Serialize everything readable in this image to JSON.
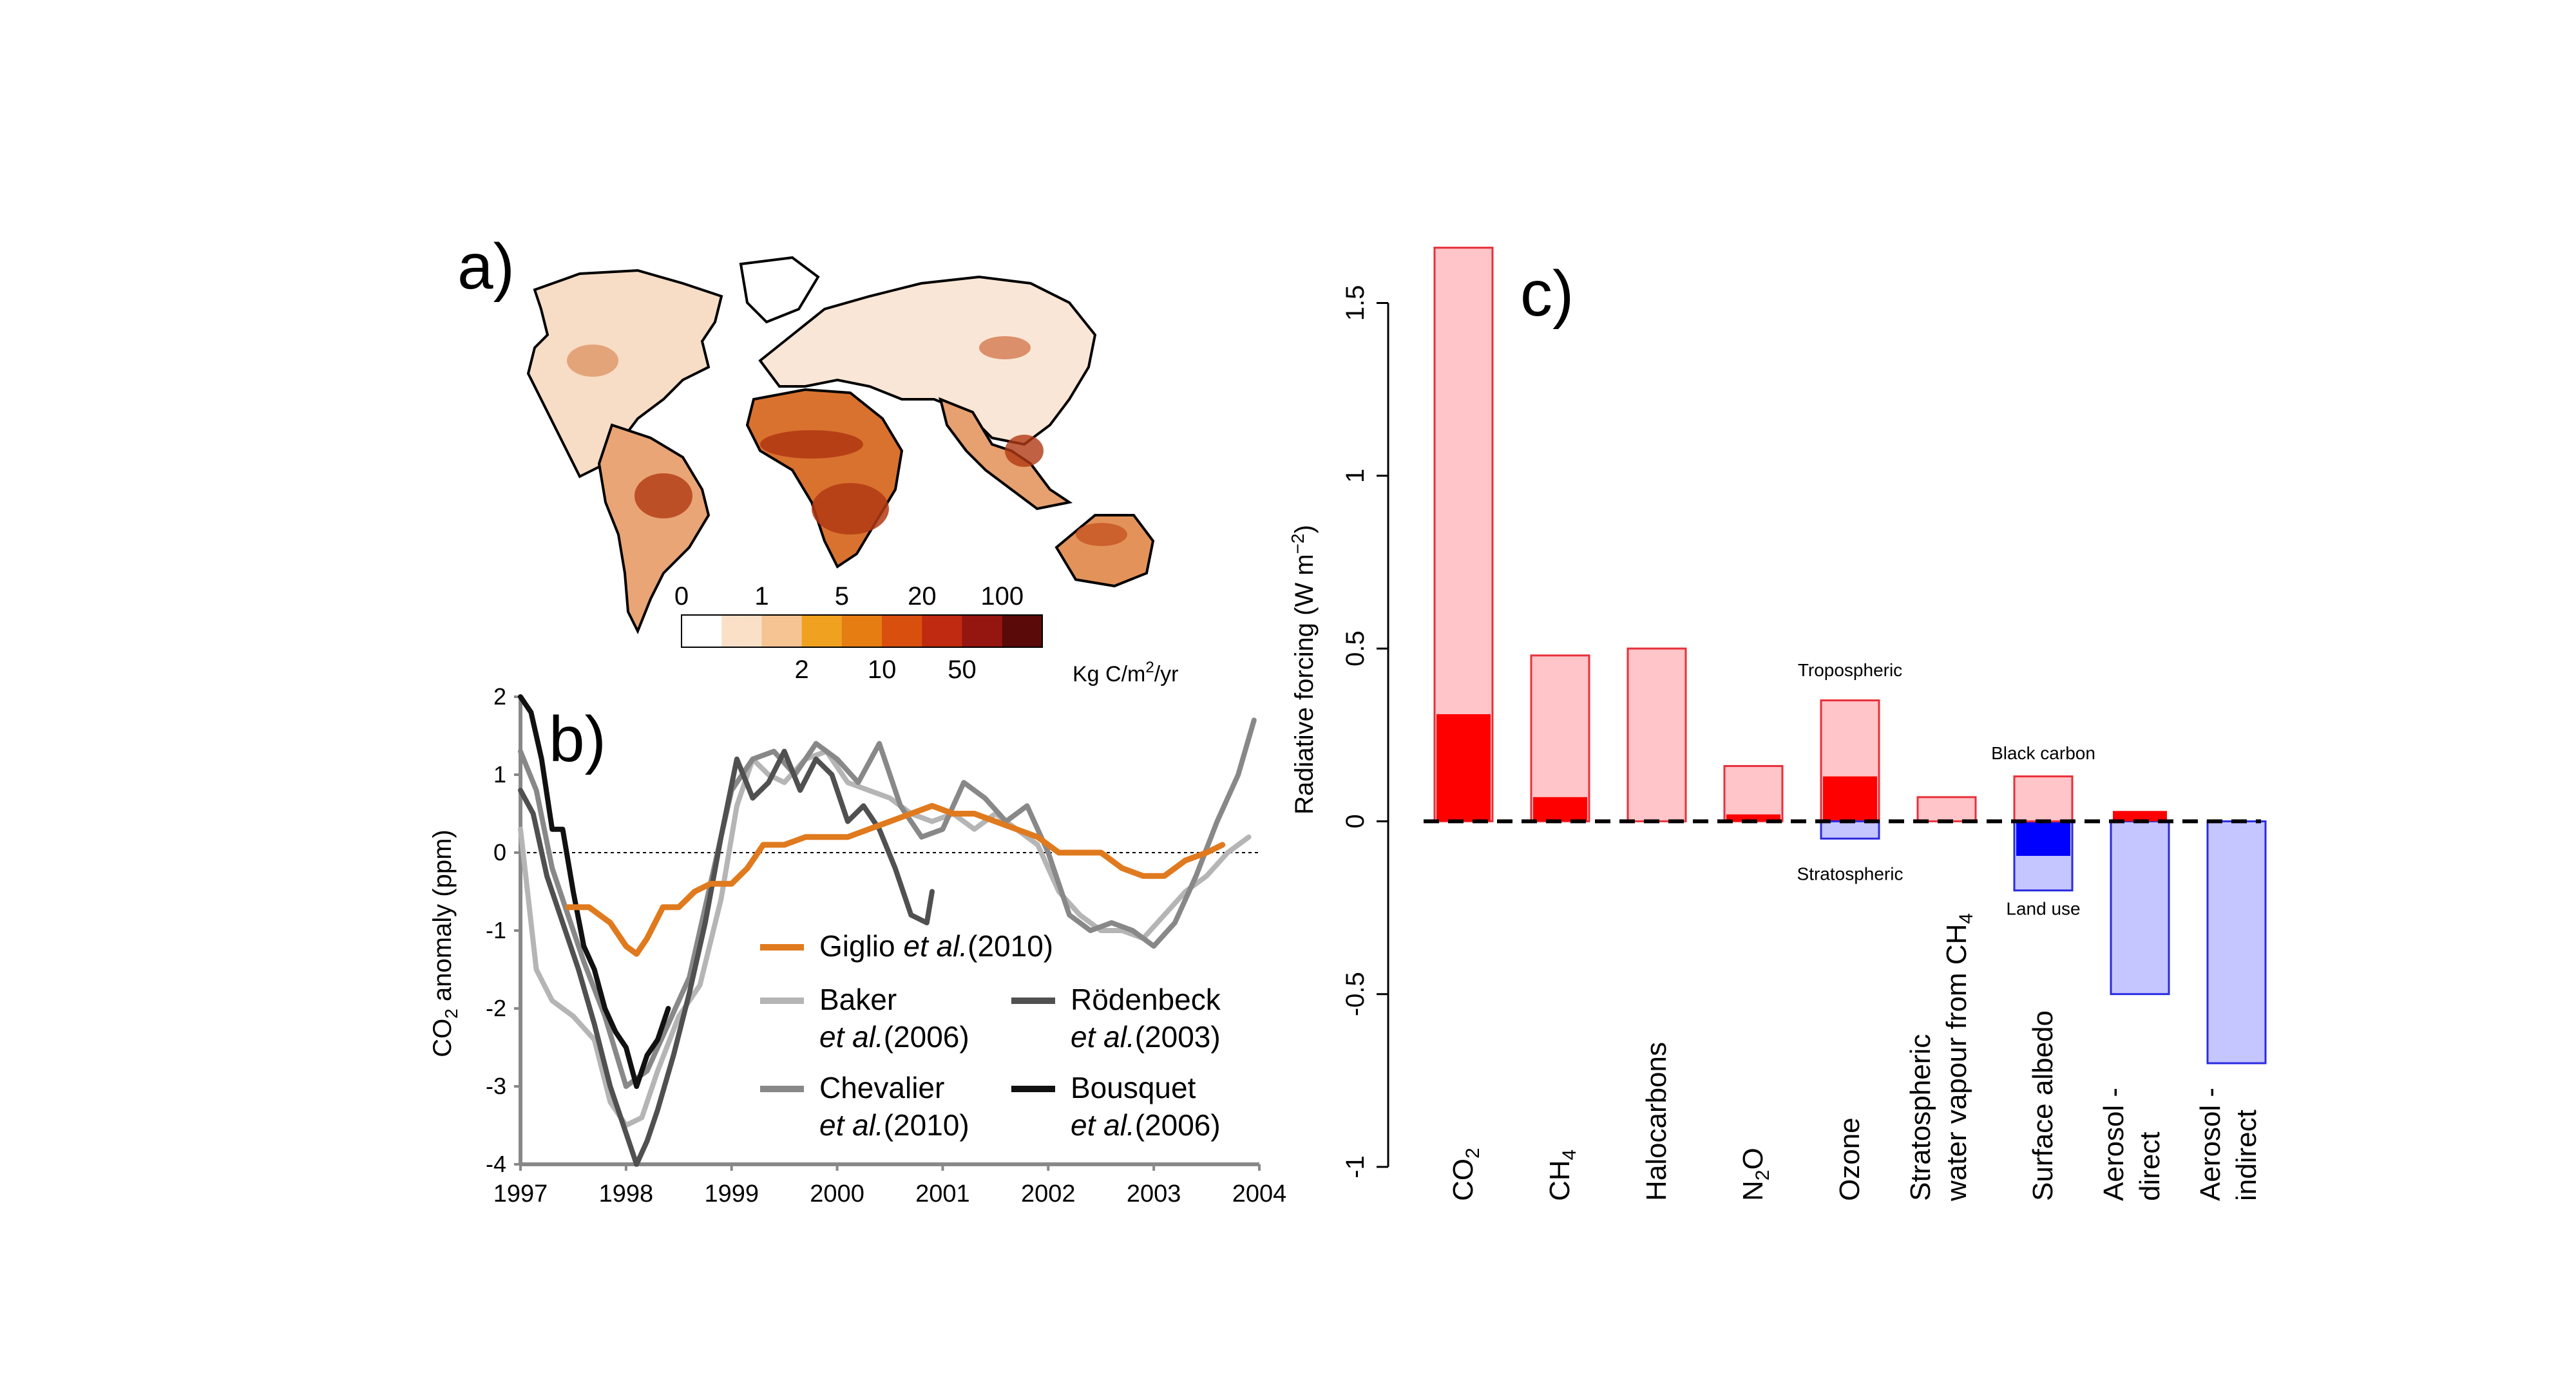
{
  "panels": {
    "a": {
      "label": "a)"
    },
    "b": {
      "label": "b)"
    },
    "c": {
      "label": "c)"
    }
  },
  "colorbar": {
    "top_ticks": [
      "0",
      "1",
      "5",
      "20",
      "100"
    ],
    "bottom_ticks": [
      "2",
      "10",
      "50"
    ],
    "unit_prefix": "Kg C/m",
    "unit_sup": "2",
    "unit_suffix": "/yr",
    "colors": [
      "#ffffff",
      "#fbe0c8",
      "#f6c393",
      "#f0a11f",
      "#e67d13",
      "#d94f0e",
      "#c02a10",
      "#951510",
      "#5a0a08"
    ]
  },
  "map_colors": {
    "light": "#f2c9a6",
    "mid": "#e08a4b",
    "dark": "#b23a14",
    "coast": "#000000"
  },
  "chart_data": [
    {
      "type": "line",
      "panel": "b",
      "ylabel_prefix": "CO",
      "ylabel_sub": "2",
      "ylabel_suffix": " anomaly (ppm)",
      "xlim": [
        1997,
        2004
      ],
      "ylim": [
        -4,
        2
      ],
      "xticks": [
        "1997",
        "1998",
        "1999",
        "2000",
        "2001",
        "2002",
        "2003",
        "2004"
      ],
      "yticks": [
        "2",
        "1",
        "0",
        "-1",
        "-2",
        "-3",
        "-4"
      ],
      "zero_line": "dotted",
      "series": [
        {
          "name": "Baker",
          "name2": "et al.",
          "year": "(2006)",
          "color": "#b5b5b5",
          "x": [
            1997.0,
            1997.15,
            1997.3,
            1997.5,
            1997.7,
            1997.85,
            1998.0,
            1998.15,
            1998.3,
            1998.5,
            1998.7,
            1998.9,
            1999.05,
            1999.2,
            1999.35,
            1999.5,
            1999.7,
            1999.9,
            2000.1,
            2000.3,
            2000.5,
            2000.7,
            2000.9,
            2001.1,
            2001.3,
            2001.5,
            2001.7,
            2001.9,
            2002.1,
            2002.3,
            2002.5,
            2002.7,
            2002.9,
            2003.1,
            2003.3,
            2003.5,
            2003.7,
            2003.9
          ],
          "y": [
            0.3,
            -1.5,
            -1.9,
            -2.1,
            -2.4,
            -3.2,
            -3.5,
            -3.4,
            -2.8,
            -2.1,
            -1.7,
            -0.6,
            0.6,
            1.2,
            1.0,
            0.9,
            1.2,
            1.3,
            0.9,
            0.8,
            0.7,
            0.5,
            0.4,
            0.5,
            0.3,
            0.5,
            0.3,
            0.1,
            -0.5,
            -0.8,
            -1.0,
            -1.0,
            -1.1,
            -0.8,
            -0.5,
            -0.3,
            0.0,
            0.2
          ]
        },
        {
          "name": "Chevalier",
          "name2": "et al.",
          "year": "(2010)",
          "color": "#888888",
          "x": [
            1997.0,
            1997.15,
            1997.3,
            1997.45,
            1997.6,
            1997.8,
            1998.0,
            1998.2,
            1998.4,
            1998.6,
            1998.8,
            1999.0,
            1999.2,
            1999.4,
            1999.6,
            1999.8,
            2000.0,
            2000.2,
            2000.4,
            2000.6,
            2000.8,
            2001.0,
            2001.2,
            2001.4,
            2001.6,
            2001.8,
            2002.0,
            2002.2,
            2002.4,
            2002.6,
            2002.8,
            2003.0,
            2003.2,
            2003.4,
            2003.6,
            2003.8,
            2003.95
          ],
          "y": [
            1.3,
            0.8,
            -0.2,
            -0.8,
            -1.4,
            -2.1,
            -3.0,
            -2.8,
            -2.2,
            -1.6,
            -0.4,
            0.8,
            1.2,
            1.3,
            1.0,
            1.4,
            1.2,
            0.9,
            1.4,
            0.6,
            0.2,
            0.3,
            0.9,
            0.7,
            0.4,
            0.6,
            0.0,
            -0.8,
            -1.0,
            -0.9,
            -1.0,
            -1.2,
            -0.9,
            -0.3,
            0.4,
            1.0,
            1.7
          ]
        },
        {
          "name": "Rödenbeck",
          "name2": "et al.",
          "year": "(2003)",
          "color": "#505050",
          "x": [
            1997.0,
            1997.12,
            1997.25,
            1997.4,
            1997.55,
            1997.7,
            1997.85,
            1998.0,
            1998.1,
            1998.2,
            1998.3,
            1998.45,
            1998.6,
            1998.75,
            1998.9,
            1999.05,
            1999.2,
            1999.35,
            1999.5,
            1999.65,
            1999.8,
            1999.95,
            2000.1,
            2000.25,
            2000.4,
            2000.55,
            2000.7,
            2000.85,
            2000.9
          ],
          "y": [
            0.8,
            0.5,
            -0.3,
            -0.9,
            -1.5,
            -2.2,
            -3.0,
            -3.6,
            -4.0,
            -3.7,
            -3.3,
            -2.6,
            -1.8,
            -0.9,
            0.2,
            1.2,
            0.7,
            0.9,
            1.3,
            0.8,
            1.2,
            1.0,
            0.4,
            0.6,
            0.3,
            -0.2,
            -0.8,
            -0.9,
            -0.5
          ]
        },
        {
          "name": "Bousquet",
          "name2": "et al.",
          "year": "(2006)",
          "color": "#111111",
          "x": [
            1997.0,
            1997.1,
            1997.2,
            1997.3,
            1997.4,
            1997.5,
            1997.6,
            1997.7,
            1997.8,
            1997.9,
            1998.0,
            1998.1,
            1998.2,
            1998.3,
            1998.4
          ],
          "y": [
            2.0,
            1.8,
            1.2,
            0.3,
            0.3,
            -0.5,
            -1.2,
            -1.5,
            -2.0,
            -2.3,
            -2.5,
            -3.0,
            -2.6,
            -2.4,
            -2.0
          ]
        },
        {
          "name": "Giglio",
          "name2": "et al.",
          "year": "(2010)",
          "color": "#e07a1e",
          "x": [
            1997.45,
            1997.65,
            1997.85,
            1998.0,
            1998.1,
            1998.2,
            1998.35,
            1998.5,
            1998.65,
            1998.8,
            1999.0,
            1999.15,
            1999.3,
            1999.5,
            1999.7,
            1999.9,
            2000.1,
            2000.3,
            2000.5,
            2000.7,
            2000.9,
            2001.1,
            2001.3,
            2001.5,
            2001.7,
            2001.9,
            2002.1,
            2002.3,
            2002.5,
            2002.7,
            2002.9,
            2003.1,
            2003.3,
            2003.5,
            2003.65
          ],
          "y": [
            -0.7,
            -0.7,
            -0.9,
            -1.2,
            -1.3,
            -1.1,
            -0.7,
            -0.7,
            -0.5,
            -0.4,
            -0.4,
            -0.2,
            0.1,
            0.1,
            0.2,
            0.2,
            0.2,
            0.3,
            0.4,
            0.5,
            0.6,
            0.5,
            0.5,
            0.4,
            0.3,
            0.2,
            0.0,
            0.0,
            0.0,
            -0.2,
            -0.3,
            -0.3,
            -0.1,
            0.0,
            0.1
          ]
        }
      ]
    },
    {
      "type": "bar",
      "panel": "c",
      "ylabel_prefix": "Radiative forcing (W m",
      "ylabel_sup": "−2",
      "ylabel_suffix": ")",
      "ylim": [
        -1,
        1.65
      ],
      "yticks": [
        "1.5",
        "1",
        "0.5",
        "0",
        "-0.5",
        "-1"
      ],
      "zero_line": "dashed",
      "categories": [
        {
          "l1": "CO",
          "sub": "2",
          "l2": ""
        },
        {
          "l1": "CH",
          "sub": "4",
          "l2": ""
        },
        {
          "l1": "Halocarbons",
          "sub": "",
          "l2": ""
        },
        {
          "l1": "N",
          "sub": "2",
          "l1b": "O",
          "l2": ""
        },
        {
          "l1": "Ozone",
          "sub": "",
          "l2": ""
        },
        {
          "l1": "Stratospheric",
          "sub": "",
          "l2": "water vapour from CH",
          "l2sub": "4"
        },
        {
          "l1": "Surface albedo",
          "sub": "",
          "l2": ""
        },
        {
          "l1": "Aerosol -",
          "sub": "",
          "l2": "direct"
        },
        {
          "l1": "Aerosol -",
          "sub": "",
          "l2": "indirect"
        }
      ],
      "total_values": [
        1.66,
        0.48,
        0.5,
        0.16,
        0.35,
        0.07,
        -0.2,
        -0.5,
        -0.7
      ],
      "fire_values": [
        0.31,
        0.07,
        0.0,
        0.02,
        0.13,
        0.0,
        -0.1,
        0.03,
        0.0
      ],
      "ozone_stratospheric_total": -0.05,
      "albedo_black_carbon": 0.13,
      "annotations": {
        "tropospheric": "Tropospheric",
        "stratospheric": "Stratospheric",
        "black_carbon": "Black carbon",
        "land_use": "Land use"
      },
      "colors": {
        "pos_light": "#ffc5c8",
        "pos_edge": "#e8303a",
        "pos_dark": "#ff0000",
        "neg_light": "#c5c5ff",
        "neg_edge": "#2a2ae0",
        "neg_dark": "#0000ff",
        "red_text": "#e00000",
        "blue_text": "#0000d0"
      }
    }
  ]
}
